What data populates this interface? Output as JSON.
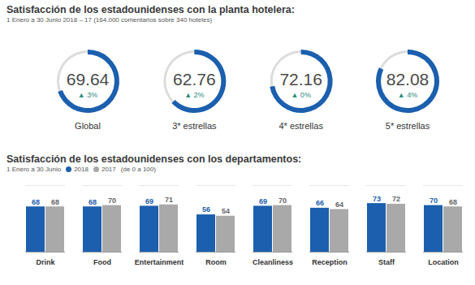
{
  "chart_data": [
    {
      "type": "gauge",
      "title": "Satisfacción de los estadounidenses con la planta hotelera:",
      "subtitle": "1 Enero a 30 Junio  2018 – 17 (164.000 comentarios sobre 340 hoteles)",
      "categories": [
        "Global",
        "3* estrellas",
        "4* estrellas",
        "5* estrellas"
      ],
      "values": [
        69.64,
        62.76,
        72.16,
        82.08
      ],
      "change": [
        3,
        2,
        0,
        4
      ],
      "change_labels": [
        "▲ 3%",
        "▲ 2%",
        "▲ 0%",
        "▲ 4%"
      ],
      "ylim": [
        0,
        100
      ],
      "color": "#1b5fae",
      "data_labels": true
    },
    {
      "type": "bar",
      "title": "Satisfacción de los estadounidenses con los departamentos:",
      "subtitle": "1 Enero a 30 Junio",
      "annotations": [
        "(de 0 a 100)"
      ],
      "categories": [
        "Drink",
        "Food",
        "Entertainment",
        "Room",
        "Cleanliness",
        "Reception",
        "Staff",
        "Location"
      ],
      "series": [
        {
          "name": "2018",
          "color": "#1b5fae",
          "values": [
            68,
            68,
            69,
            56,
            69,
            66,
            73,
            70
          ]
        },
        {
          "name": "2017",
          "color": "#a9a9a9",
          "values": [
            68,
            70,
            71,
            54,
            70,
            64,
            72,
            68
          ]
        }
      ],
      "ylim": [
        0,
        100
      ],
      "legend": "top",
      "data_labels": true,
      "tick_labels": "x"
    }
  ]
}
